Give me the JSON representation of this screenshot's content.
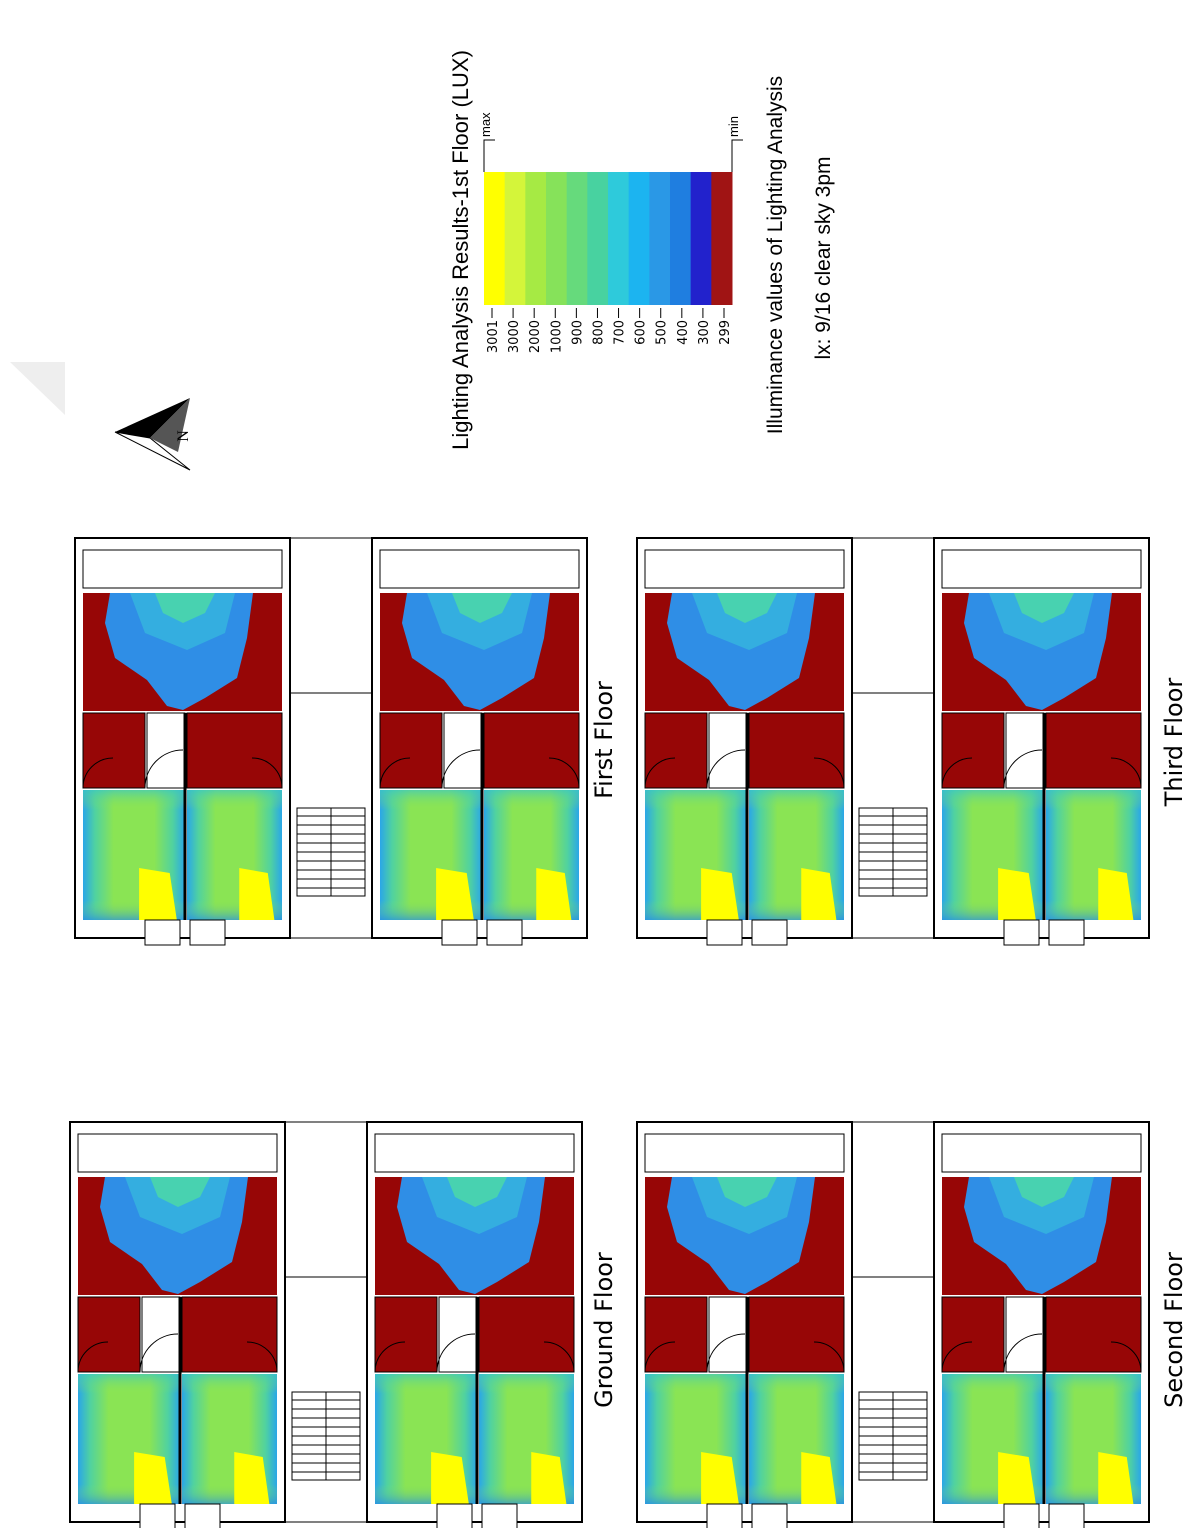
{
  "legend": {
    "title": "Lighting Analysis Results-1st Floor (LUX)",
    "max_label": "max",
    "min_label": "min",
    "ticks": [
      3001,
      3000,
      2000,
      1000,
      900,
      800,
      700,
      600,
      500,
      400,
      300,
      299
    ],
    "colors": [
      "#ffff00",
      "#d4f53a",
      "#a6ea44",
      "#86e25a",
      "#66da7c",
      "#48d2a0",
      "#2ecadb",
      "#1cb4f0",
      "#2a98e6",
      "#1f7ee0",
      "#2222cc",
      "#a01414"
    ]
  },
  "caption": {
    "line1": "Illuminance values of Lighting Analysis",
    "line2": "lx: 9/16 clear sky 3pm"
  },
  "compass": {
    "label": "N"
  },
  "floors": [
    "First Floor",
    "Third Floor",
    "Ground Floor",
    "Second Floor"
  ]
}
